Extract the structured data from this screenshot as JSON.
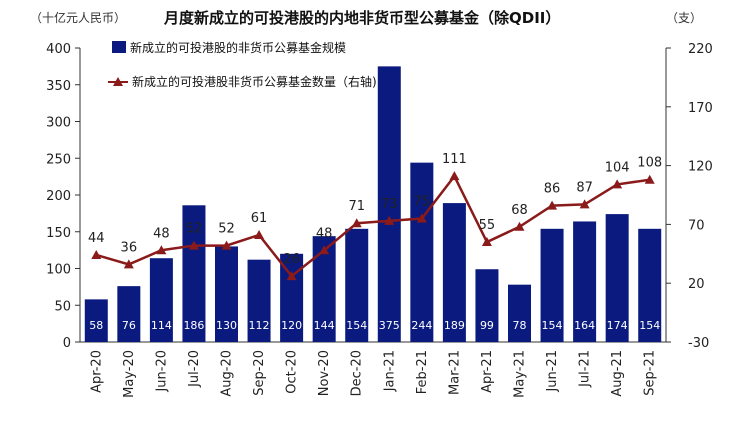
{
  "chart_data": {
    "type": "bar+line",
    "title": "月度新成立的可投港股的内地非货币型公募基金（除QDII）",
    "left_axis_unit": "（十亿元人民币）",
    "right_axis_unit": "（支）",
    "categories": [
      "Apr-20",
      "May-20",
      "Jun-20",
      "Jul-20",
      "Aug-20",
      "Sep-20",
      "Oct-20",
      "Nov-20",
      "Dec-20",
      "Jan-21",
      "Feb-21",
      "Mar-21",
      "Apr-21",
      "May-21",
      "Jun-21",
      "Jul-21",
      "Aug-21",
      "Sep-21"
    ],
    "bar_series": {
      "name": "新成立的可投港股的非货币公募基金规模",
      "values": [
        58,
        76,
        114,
        186,
        130,
        112,
        120,
        144,
        154,
        375,
        244,
        189,
        99,
        78,
        154,
        164,
        174,
        154
      ],
      "color": "#0a1a7e",
      "axis": "left"
    },
    "line_series": {
      "name": "新成立的可投港股非货币公募基金数量（右轴)",
      "values": [
        44,
        36,
        48,
        52,
        52,
        61,
        26,
        48,
        71,
        73,
        75,
        111,
        55,
        68,
        86,
        87,
        104,
        108
      ],
      "color": "#8b1a1a",
      "axis": "right"
    },
    "left_axis": {
      "min": 0,
      "max": 400,
      "ticks": [
        0,
        50,
        100,
        150,
        200,
        250,
        300,
        350,
        400
      ]
    },
    "right_axis": {
      "min": -30,
      "max": 220,
      "ticks": [
        -30,
        20,
        70,
        120,
        170,
        220
      ]
    }
  }
}
